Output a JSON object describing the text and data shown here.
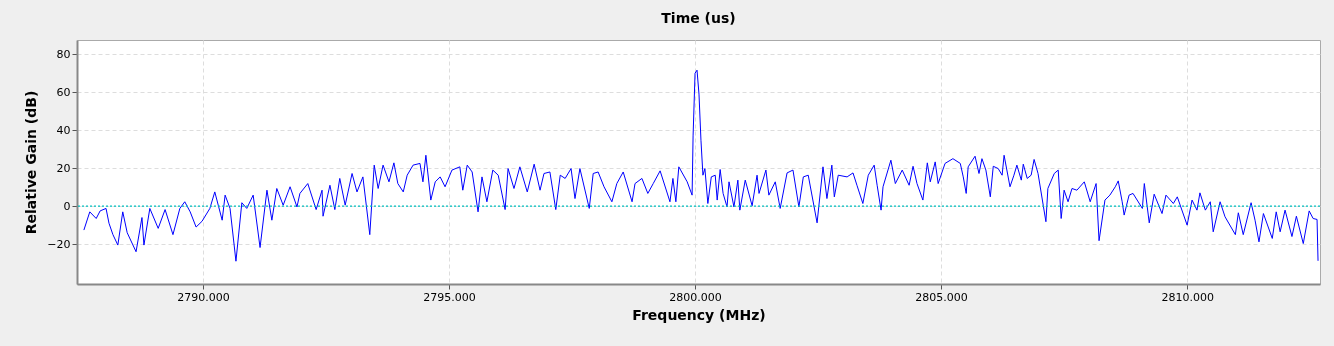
{
  "chart_data": {
    "type": "line",
    "title": "Time (us)",
    "xlabel": "Frequency (MHz)",
    "ylabel": "Relative Gain (dB)",
    "xlim": [
      2787.44,
      2812.7
    ],
    "ylim": [
      -41,
      87.5
    ],
    "xticks": [
      {
        "value": 2790,
        "label": "2790.000"
      },
      {
        "value": 2795,
        "label": "2795.000"
      },
      {
        "value": 2800,
        "label": "2800.000"
      },
      {
        "value": 2805,
        "label": "2805.000"
      },
      {
        "value": 2810,
        "label": "2810.000"
      }
    ],
    "yticks": [
      -20,
      0,
      20,
      40,
      60,
      80
    ],
    "grid": true,
    "line_style": "solid",
    "marker": "none",
    "ref_lines": [
      {
        "axis": "y",
        "value": 0,
        "color": "#00bfbf",
        "line_style": "dotted"
      }
    ],
    "series": [
      {
        "color": "#0000ff",
        "x": [
          2787.58,
          2787.7,
          2787.83,
          2787.91,
          2788.03,
          2788.09,
          2788.17,
          2788.27,
          2788.37,
          2788.46,
          2788.64,
          2788.76,
          2788.8,
          2788.92,
          2789.09,
          2789.23,
          2789.39,
          2789.53,
          2789.63,
          2789.74,
          2789.86,
          2789.98,
          2790.14,
          2790.24,
          2790.39,
          2790.45,
          2790.55,
          2790.67,
          2790.79,
          2790.89,
          2791.02,
          2791.16,
          2791.3,
          2791.4,
          2791.5,
          2791.63,
          2791.77,
          2791.91,
          2791.97,
          2792.13,
          2792.3,
          2792.42,
          2792.44,
          2792.58,
          2792.68,
          2792.78,
          2792.89,
          2793.03,
          2793.13,
          2793.25,
          2793.39,
          2793.48,
          2793.56,
          2793.66,
          2793.78,
          2793.88,
          2793.96,
          2794.07,
          2794.15,
          2794.27,
          2794.41,
          2794.47,
          2794.53,
          2794.63,
          2794.72,
          2794.82,
          2794.92,
          2795.06,
          2795.22,
          2795.28,
          2795.37,
          2795.47,
          2795.59,
          2795.67,
          2795.77,
          2795.89,
          2796.0,
          2796.14,
          2796.2,
          2796.32,
          2796.44,
          2796.59,
          2796.73,
          2796.85,
          2796.93,
          2797.05,
          2797.17,
          2797.26,
          2797.36,
          2797.48,
          2797.56,
          2797.66,
          2797.85,
          2797.93,
          2798.03,
          2798.15,
          2798.31,
          2798.41,
          2798.54,
          2798.72,
          2798.78,
          2798.92,
          2799.04,
          2799.15,
          2799.29,
          2799.49,
          2799.55,
          2799.61,
          2799.67,
          2799.84,
          2799.94,
          2799.96,
          2800.0,
          2800.04,
          2800.08,
          2800.12,
          2800.16,
          2800.2,
          2800.26,
          2800.33,
          2800.41,
          2800.45,
          2800.51,
          2800.57,
          2800.65,
          2800.69,
          2800.79,
          2800.87,
          2800.91,
          2801.02,
          2801.16,
          2801.26,
          2801.3,
          2801.44,
          2801.5,
          2801.63,
          2801.73,
          2801.87,
          2801.99,
          2802.11,
          2802.2,
          2802.3,
          2802.48,
          2802.6,
          2802.68,
          2802.78,
          2802.83,
          2802.91,
          2803.09,
          2803.21,
          2803.29,
          2803.41,
          2803.52,
          2803.64,
          2803.7,
          2803.78,
          2803.82,
          2803.98,
          2804.07,
          2804.21,
          2804.35,
          2804.43,
          2804.51,
          2804.63,
          2804.72,
          2804.78,
          2804.88,
          2804.94,
          2805.08,
          2805.24,
          2805.39,
          2805.45,
          2805.51,
          2805.55,
          2805.69,
          2805.77,
          2805.83,
          2805.91,
          2806.0,
          2806.06,
          2806.16,
          2806.24,
          2806.28,
          2806.4,
          2806.48,
          2806.54,
          2806.63,
          2806.67,
          2806.75,
          2806.83,
          2806.89,
          2806.97,
          2807.13,
          2807.17,
          2807.3,
          2807.38,
          2807.44,
          2807.5,
          2807.58,
          2807.66,
          2807.76,
          2807.91,
          2808.03,
          2808.15,
          2808.21,
          2808.33,
          2808.43,
          2808.54,
          2808.6,
          2808.68,
          2808.72,
          2808.82,
          2808.9,
          2809.09,
          2809.13,
          2809.23,
          2809.33,
          2809.49,
          2809.57,
          2809.72,
          2809.8,
          2810.0,
          2810.1,
          2810.2,
          2810.26,
          2810.37,
          2810.47,
          2810.53,
          2810.67,
          2810.77,
          2810.98,
          2811.04,
          2811.14,
          2811.3,
          2811.38,
          2811.46,
          2811.55,
          2811.73,
          2811.81,
          2811.89,
          2811.99,
          2812.13,
          2812.22,
          2812.36,
          2812.48,
          2812.56,
          2812.64,
          2812.66
        ],
        "values": [
          -12.6,
          -3,
          -6.5,
          -2.5,
          -1.2,
          -9,
          -15,
          -20.5,
          -3,
          -14,
          -24,
          -6,
          -20.5,
          -1.2,
          -11.7,
          -1.8,
          -15,
          -1.2,
          2.3,
          -3,
          -11,
          -8,
          -1.2,
          7.5,
          -7.4,
          5.8,
          -1.2,
          -29,
          1.8,
          -1.2,
          5.8,
          -21.8,
          8.4,
          -7.4,
          9.3,
          0.5,
          10.2,
          -0.4,
          6.7,
          11.9,
          -1.8,
          8.4,
          -5.3,
          11,
          -1.8,
          14.6,
          0.5,
          17.2,
          7.5,
          15.4,
          -15,
          21.6,
          9.3,
          21.6,
          12.8,
          22.8,
          11.9,
          7.5,
          16.3,
          21.6,
          22.5,
          12.8,
          26.8,
          3.2,
          12.8,
          15.4,
          10.2,
          19,
          20.7,
          8.4,
          21.6,
          18,
          -3,
          15.4,
          2.3,
          19,
          16.3,
          -1.8,
          19.8,
          9.3,
          20.7,
          7.5,
          22.1,
          8.4,
          17.2,
          18,
          -1.8,
          16.3,
          14.6,
          19.8,
          4,
          19.8,
          -1.2,
          17.2,
          18,
          10.2,
          2.3,
          11.9,
          18,
          2.3,
          11.9,
          14.6,
          6.7,
          11.9,
          18.6,
          2.3,
          14.6,
          2.3,
          20.7,
          12.8,
          5.8,
          37,
          70,
          71.6,
          59,
          34.7,
          16.3,
          19.8,
          1.4,
          15.4,
          16.3,
          3.2,
          19.3,
          6.7,
          -0.4,
          12.8,
          -0.4,
          13.7,
          -2.1,
          13.7,
          0.2,
          16.3,
          6.7,
          19,
          5.8,
          12.8,
          -1.2,
          17.5,
          19,
          -0.4,
          15.4,
          16.3,
          -8.8,
          20.7,
          4,
          21.6,
          4.9,
          16.3,
          15.4,
          17.5,
          11,
          1.4,
          16.3,
          21.6,
          11,
          -2.1,
          10.2,
          24.2,
          11.9,
          19,
          11,
          21,
          11.9,
          3.2,
          22.8,
          12.8,
          23.3,
          11.9,
          22.5,
          25,
          22.5,
          15.4,
          6.7,
          20.7,
          26.3,
          17.2,
          25,
          19,
          4.9,
          21,
          19.8,
          16.3,
          26.8,
          10.2,
          16.3,
          21.6,
          13.7,
          22.1,
          14.6,
          16.3,
          24.6,
          17.2,
          -8.2,
          9.3,
          17.2,
          19,
          -6.5,
          8.4,
          2.3,
          9.3,
          8.4,
          12.8,
          2.3,
          11.9,
          -18.2,
          3.2,
          5.8,
          10.2,
          13.3,
          2.3,
          -4.7,
          5.8,
          6.7,
          -1.2,
          11.9,
          -8.8,
          6.3,
          -3.9,
          5.8,
          1.4,
          4.9,
          -10,
          3.2,
          -2.1,
          7,
          -2.1,
          2.3,
          -13.5,
          2.3,
          -5.6,
          -15,
          -3.5,
          -15,
          1.8,
          -7.4,
          -18.8,
          -3.9,
          -17,
          -3,
          -13.5,
          -2.1,
          -16,
          -5.3,
          -19.7,
          -2.5,
          -6.5,
          -7,
          -28.8
        ]
      }
    ]
  }
}
